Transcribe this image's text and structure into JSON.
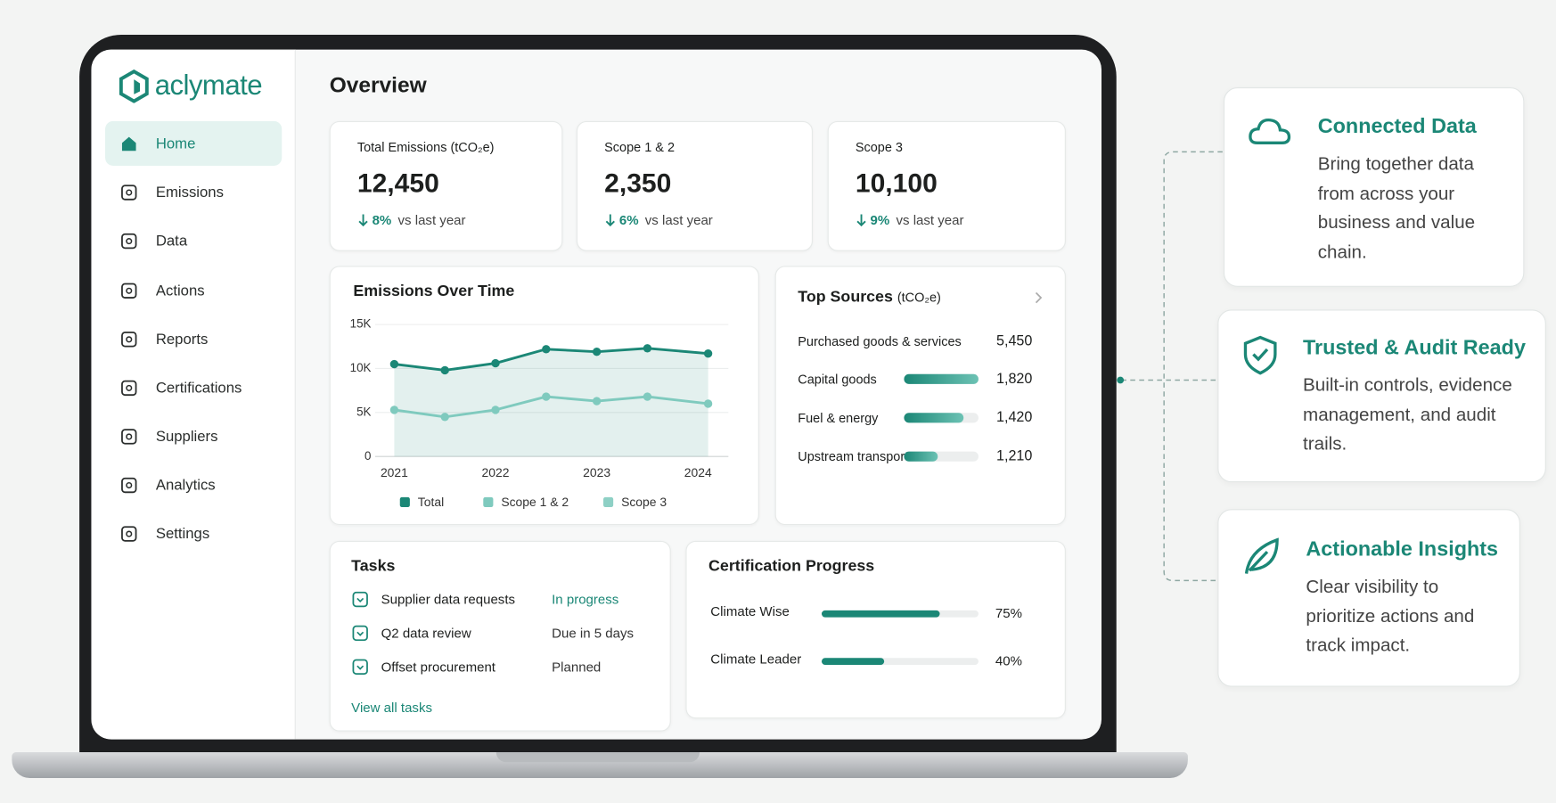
{
  "brand": "aclymate",
  "nav": [
    "Home",
    "Emissions",
    "Data",
    "Actions",
    "Reports",
    "Certifications",
    "Suppliers",
    "Analytics",
    "Settings"
  ],
  "page_title": "Overview",
  "kpis": [
    {
      "label": "Total Emissions (tCO₂e)",
      "value": "12,450",
      "change": "8%",
      "change_text": "vs last year"
    },
    {
      "label": "Scope 1 & 2",
      "value": "2,350",
      "change": "6%",
      "change_text": "vs last year"
    },
    {
      "label": "Scope 3",
      "value": "10,100",
      "change": "9%",
      "change_text": "vs last year"
    }
  ],
  "chart_data": {
    "type": "line",
    "title": "Emissions Over Time",
    "x": [
      2021,
      2021.5,
      2022,
      2022.5,
      2023,
      2023.5,
      2024.1
    ],
    "series": [
      {
        "name": "Total",
        "color": "#1b8776",
        "values": [
          10500,
          9800,
          10600,
          12200,
          11900,
          12300,
          11700
        ],
        "area": true
      },
      {
        "name": "Scope 1 & 2",
        "color": "#7fcabe",
        "values": [
          5300,
          4500,
          5300,
          6800,
          6300,
          6800,
          6000
        ]
      },
      {
        "name": "Scope 3",
        "color": "#8ed0c5",
        "values": [
          null,
          null,
          null,
          null,
          null,
          null,
          null
        ]
      }
    ],
    "xlim": [
      2020.85,
      2024.3
    ],
    "xticks": [
      2021,
      2022,
      2023,
      2024
    ],
    "ylim": [
      0,
      15000
    ],
    "yticks": [
      0,
      {
        "value": 5000,
        "label": "5K"
      },
      {
        "value": 10000,
        "label": "10K"
      },
      {
        "value": 15000,
        "label": "15K"
      }
    ],
    "grid": true,
    "legend": "bottom"
  },
  "top_sources": {
    "title": "Top Sources",
    "unit": "(tCO₂e)",
    "items": [
      {
        "name": "Purchased goods & services",
        "value": "5,450"
      },
      {
        "name": "Capital goods",
        "value": "1,820",
        "bar": 1.0
      },
      {
        "name": "Fuel & energy",
        "value": "1,420",
        "bar": 0.8
      },
      {
        "name": "Upstream transport",
        "value": "1,210",
        "bar": 0.45
      }
    ]
  },
  "tasks": {
    "title": "Tasks",
    "rows": [
      {
        "name": "Supplier data requests",
        "status": "In progress"
      },
      {
        "name": "Q2 data review",
        "status": "Due in 5 days"
      },
      {
        "name": "Offset procurement",
        "status": "Planned"
      }
    ],
    "link": "View all tasks"
  },
  "certification": {
    "title": "Certification Progress",
    "items": [
      {
        "name": "Climate Wise",
        "value": 75,
        "value_label": "75%"
      },
      {
        "name": "Climate Leader",
        "value": 40,
        "value_label": "40%"
      }
    ]
  },
  "features": [
    {
      "title": "Connected Data",
      "text": "Bring together data from across your business and value chain."
    },
    {
      "title": "Trusted & Audit Ready",
      "text": "Built-in controls, evidence management, and audit trails."
    },
    {
      "title": "Actionable Insights",
      "text": "Clear visibility to prioritize actions and track impact."
    }
  ]
}
